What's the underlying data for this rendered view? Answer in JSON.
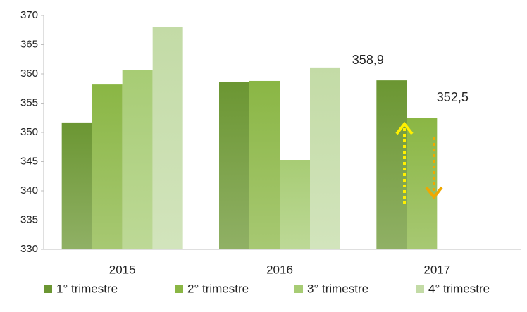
{
  "chart_data": {
    "type": "bar",
    "categories": [
      "2015",
      "2016",
      "2017"
    ],
    "series": [
      {
        "name": "1° trimestre",
        "color": "#6b9632",
        "values": [
          351.7,
          358.6,
          358.9
        ],
        "value_labels": [
          null,
          null,
          "358,9"
        ]
      },
      {
        "name": "2° trimestre",
        "color": "#8ab644",
        "values": [
          358.3,
          358.8,
          352.5
        ],
        "value_labels": [
          null,
          null,
          "352,5"
        ]
      },
      {
        "name": "3° trimestre",
        "color": "#a7cc74",
        "values": [
          360.7,
          345.3,
          null
        ]
      },
      {
        "name": "4° trimestre",
        "color": "#c3dba6",
        "values": [
          368.0,
          361.1,
          null
        ]
      }
    ],
    "ylim": [
      330,
      370
    ],
    "yticks": [
      330,
      335,
      340,
      345,
      350,
      355,
      360,
      365,
      370
    ],
    "grid": false,
    "legend": "bottom"
  }
}
